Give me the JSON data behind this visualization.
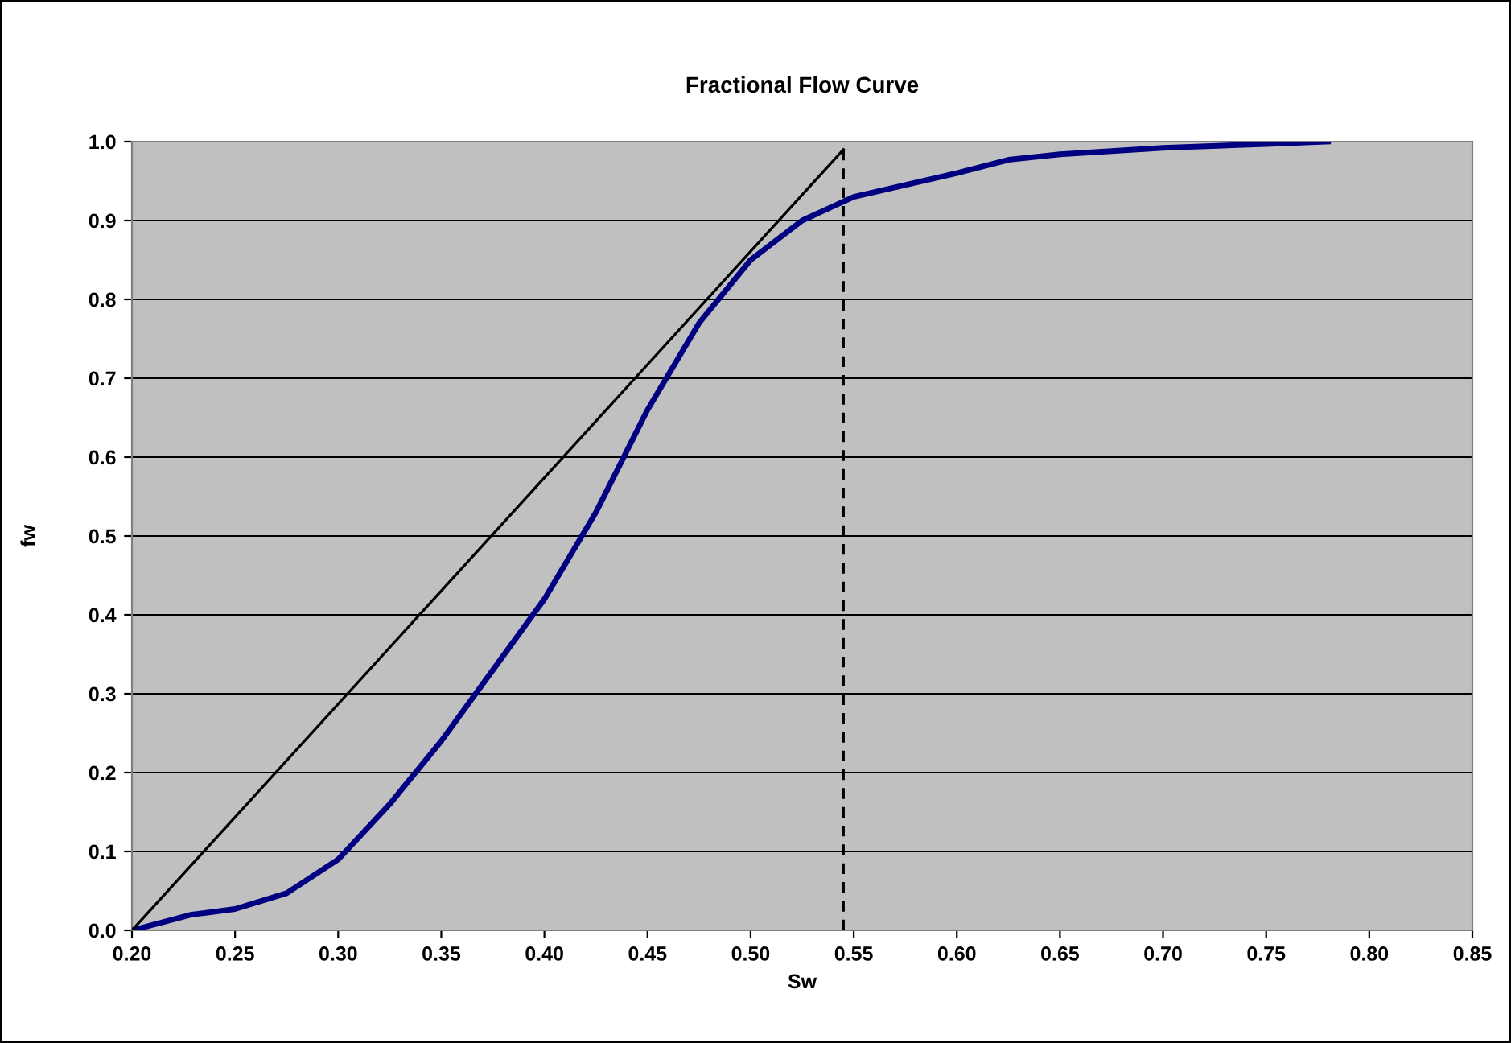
{
  "chart_data": {
    "type": "line",
    "title": "Fractional Flow Curve",
    "xlabel": "Sw",
    "ylabel": "fw",
    "xlim": [
      0.2,
      0.85
    ],
    "xticks": [
      {
        "value": 0.2,
        "label": "0.20"
      },
      {
        "value": 0.25,
        "label": "0.25"
      },
      {
        "value": 0.3,
        "label": "0.30"
      },
      {
        "value": 0.35,
        "label": "0.35"
      },
      {
        "value": 0.4,
        "label": "0.40"
      },
      {
        "value": 0.45,
        "label": "0.45"
      },
      {
        "value": 0.5,
        "label": "0.50"
      },
      {
        "value": 0.55,
        "label": "0.55"
      },
      {
        "value": 0.6,
        "label": "0.60"
      },
      {
        "value": 0.65,
        "label": "0.65"
      },
      {
        "value": 0.7,
        "label": "0.70"
      },
      {
        "value": 0.75,
        "label": "0.75"
      },
      {
        "value": 0.8,
        "label": "0.80"
      },
      {
        "value": 0.85,
        "label": "0.85"
      }
    ],
    "ylim": [
      0,
      1
    ],
    "yticks": [
      {
        "value": 0,
        "label": "0.0"
      },
      {
        "value": 0.1,
        "label": "0.1"
      },
      {
        "value": 0.2,
        "label": "0.2"
      },
      {
        "value": 0.3,
        "label": "0.3"
      },
      {
        "value": 0.4,
        "label": "0.4"
      },
      {
        "value": 0.5,
        "label": "0.5"
      },
      {
        "value": 0.6,
        "label": "0.6"
      },
      {
        "value": 0.7,
        "label": "0.7"
      },
      {
        "value": 0.8,
        "label": "0.8"
      },
      {
        "value": 0.9,
        "label": "0.9"
      },
      {
        "value": 1,
        "label": "1.0"
      }
    ],
    "grid": "y",
    "marker": "none",
    "series": [
      {
        "color": "#000080",
        "line_style": "solid",
        "x": [
          0.2,
          0.229,
          0.25,
          0.275,
          0.3,
          0.325,
          0.35,
          0.375,
          0.4,
          0.425,
          0.45,
          0.475,
          0.5,
          0.525,
          0.55,
          0.575,
          0.6,
          0.625,
          0.65,
          0.7,
          0.75,
          0.78
        ],
        "values": [
          0,
          0.02,
          0.027,
          0.047,
          0.09,
          0.16,
          0.24,
          0.33,
          0.42,
          0.53,
          0.66,
          0.77,
          0.85,
          0.9,
          0.93,
          0.945,
          0.96,
          0.977,
          0.984,
          0.992,
          0.997,
          1.0
        ]
      },
      {
        "color": "#000000",
        "line_style": "solid",
        "x": [
          0.2,
          0.545
        ],
        "values": [
          0,
          0.99
        ]
      },
      {
        "color": "#000000",
        "line_style": "dashed",
        "x": [
          0.545,
          0.545
        ],
        "values": [
          0,
          0.99
        ]
      }
    ]
  }
}
